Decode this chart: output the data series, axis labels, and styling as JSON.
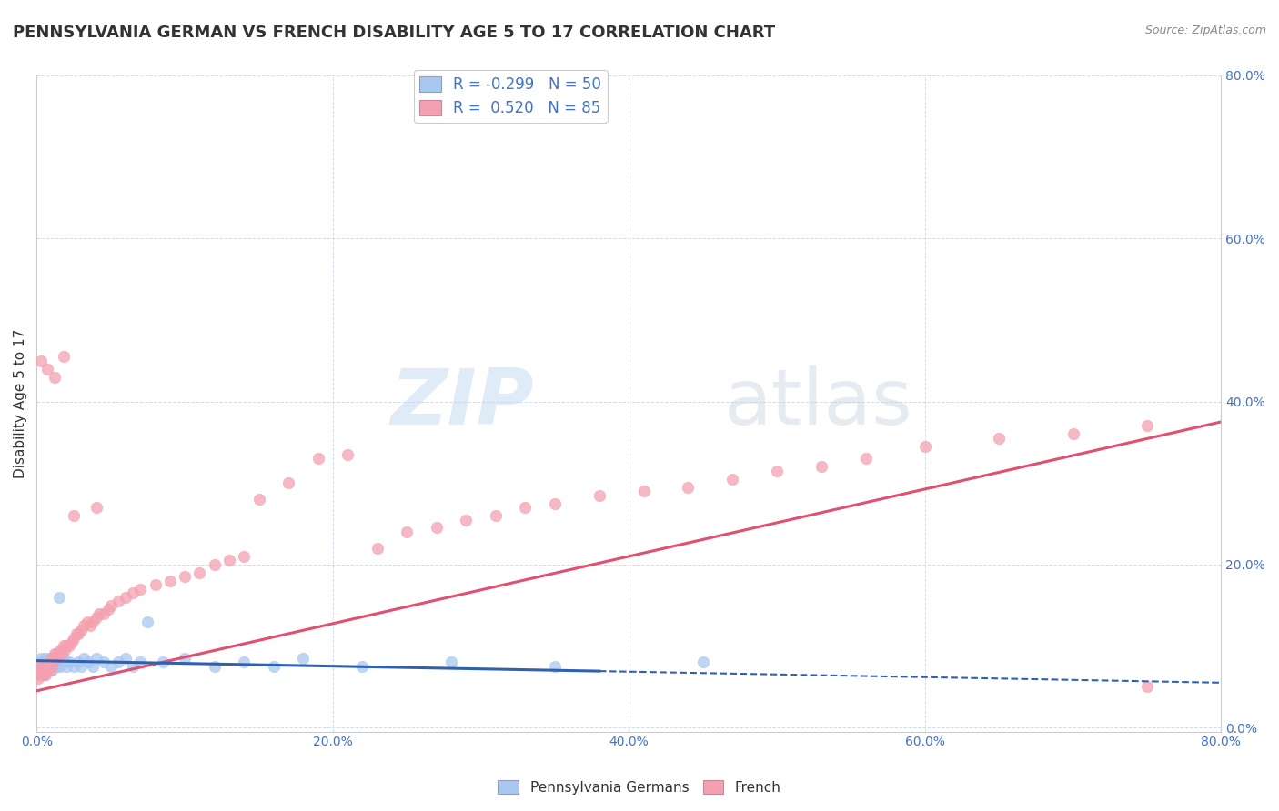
{
  "title": "PENNSYLVANIA GERMAN VS FRENCH DISABILITY AGE 5 TO 17 CORRELATION CHART",
  "source": "Source: ZipAtlas.com",
  "ylabel": "Disability Age 5 to 17",
  "xlabel": "",
  "xlim": [
    0.0,
    0.8
  ],
  "ylim": [
    -0.005,
    0.8
  ],
  "xticks": [
    0.0,
    0.2,
    0.4,
    0.6,
    0.8
  ],
  "yticks": [
    0.0,
    0.2,
    0.4,
    0.6,
    0.8
  ],
  "xtick_labels": [
    "0.0%",
    "20.0%",
    "40.0%",
    "60.0%",
    "80.0%"
  ],
  "ytick_labels": [
    "0.0%",
    "20.0%",
    "40.0%",
    "60.0%",
    "80.0%"
  ],
  "series": [
    {
      "name": "Pennsylvania Germans",
      "R": -0.299,
      "N": 50,
      "color": "#a8c8f0",
      "line_color": "#3060b0",
      "x": [
        0.001,
        0.002,
        0.002,
        0.003,
        0.003,
        0.004,
        0.004,
        0.005,
        0.005,
        0.006,
        0.006,
        0.007,
        0.008,
        0.008,
        0.009,
        0.01,
        0.01,
        0.011,
        0.012,
        0.013,
        0.015,
        0.015,
        0.016,
        0.018,
        0.02,
        0.022,
        0.025,
        0.028,
        0.03,
        0.032,
        0.035,
        0.038,
        0.04,
        0.045,
        0.05,
        0.055,
        0.06,
        0.065,
        0.07,
        0.075,
        0.085,
        0.1,
        0.12,
        0.14,
        0.16,
        0.18,
        0.22,
        0.28,
        0.35,
        0.45
      ],
      "y": [
        0.07,
        0.075,
        0.08,
        0.065,
        0.085,
        0.07,
        0.075,
        0.065,
        0.08,
        0.075,
        0.085,
        0.07,
        0.08,
        0.075,
        0.085,
        0.07,
        0.08,
        0.075,
        0.08,
        0.075,
        0.085,
        0.16,
        0.075,
        0.085,
        0.075,
        0.08,
        0.075,
        0.08,
        0.075,
        0.085,
        0.08,
        0.075,
        0.085,
        0.08,
        0.075,
        0.08,
        0.085,
        0.075,
        0.08,
        0.13,
        0.08,
        0.085,
        0.075,
        0.08,
        0.075,
        0.085,
        0.075,
        0.08,
        0.075,
        0.08
      ]
    },
    {
      "name": "French",
      "R": 0.52,
      "N": 85,
      "color": "#f4a0b0",
      "line_color": "#e05070",
      "x": [
        0.001,
        0.001,
        0.002,
        0.002,
        0.003,
        0.003,
        0.004,
        0.004,
        0.005,
        0.005,
        0.006,
        0.006,
        0.007,
        0.008,
        0.008,
        0.009,
        0.009,
        0.01,
        0.01,
        0.011,
        0.012,
        0.012,
        0.013,
        0.014,
        0.015,
        0.016,
        0.017,
        0.018,
        0.019,
        0.02,
        0.022,
        0.024,
        0.025,
        0.027,
        0.028,
        0.03,
        0.032,
        0.034,
        0.036,
        0.038,
        0.04,
        0.042,
        0.045,
        0.048,
        0.05,
        0.055,
        0.06,
        0.065,
        0.07,
        0.08,
        0.09,
        0.1,
        0.11,
        0.12,
        0.13,
        0.14,
        0.15,
        0.17,
        0.19,
        0.21,
        0.23,
        0.25,
        0.27,
        0.29,
        0.31,
        0.33,
        0.35,
        0.38,
        0.41,
        0.44,
        0.47,
        0.5,
        0.53,
        0.56,
        0.6,
        0.65,
        0.7,
        0.75,
        0.003,
        0.007,
        0.012,
        0.018,
        0.025,
        0.04,
        0.75
      ],
      "y": [
        0.06,
        0.07,
        0.065,
        0.075,
        0.07,
        0.065,
        0.075,
        0.065,
        0.07,
        0.075,
        0.065,
        0.07,
        0.075,
        0.07,
        0.075,
        0.07,
        0.08,
        0.075,
        0.085,
        0.08,
        0.085,
        0.09,
        0.09,
        0.085,
        0.09,
        0.095,
        0.09,
        0.1,
        0.095,
        0.1,
        0.1,
        0.105,
        0.11,
        0.115,
        0.115,
        0.12,
        0.125,
        0.13,
        0.125,
        0.13,
        0.135,
        0.14,
        0.14,
        0.145,
        0.15,
        0.155,
        0.16,
        0.165,
        0.17,
        0.175,
        0.18,
        0.185,
        0.19,
        0.2,
        0.205,
        0.21,
        0.28,
        0.3,
        0.33,
        0.335,
        0.22,
        0.24,
        0.245,
        0.255,
        0.26,
        0.27,
        0.275,
        0.285,
        0.29,
        0.295,
        0.305,
        0.315,
        0.32,
        0.33,
        0.345,
        0.355,
        0.36,
        0.37,
        0.45,
        0.44,
        0.43,
        0.455,
        0.26,
        0.27,
        0.05
      ]
    }
  ],
  "watermark_zip": "ZIP",
  "watermark_atlas": "atlas",
  "background_color": "#ffffff",
  "grid_color": "#c8d4e8",
  "title_fontsize": 13,
  "axis_label_fontsize": 11,
  "tick_fontsize": 10,
  "legend_color": "#4472c4"
}
